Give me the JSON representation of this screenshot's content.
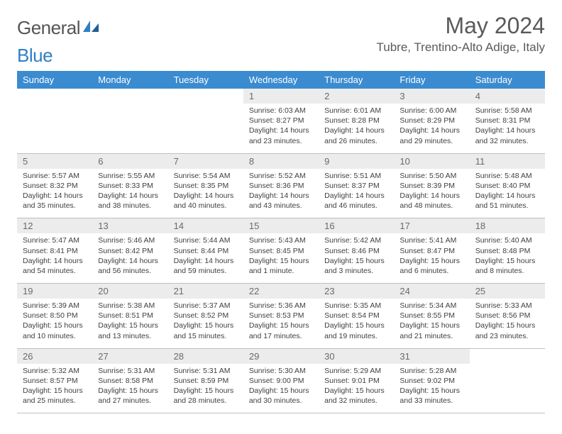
{
  "brand": {
    "word1": "General",
    "word2": "Blue"
  },
  "header": {
    "month_title": "May 2024",
    "location": "Tubre, Trentino-Alto Adige, Italy"
  },
  "colors": {
    "header_bg": "#3b8bd0",
    "header_text": "#ffffff",
    "daynum_bg": "#ececec",
    "text": "#3f3f3f",
    "border": "#bfbfbf"
  },
  "day_names": [
    "Sunday",
    "Monday",
    "Tuesday",
    "Wednesday",
    "Thursday",
    "Friday",
    "Saturday"
  ],
  "weeks": [
    [
      {
        "n": "",
        "lines": [
          "",
          "",
          "",
          ""
        ]
      },
      {
        "n": "",
        "lines": [
          "",
          "",
          "",
          ""
        ]
      },
      {
        "n": "",
        "lines": [
          "",
          "",
          "",
          ""
        ]
      },
      {
        "n": "1",
        "lines": [
          "Sunrise: 6:03 AM",
          "Sunset: 8:27 PM",
          "Daylight: 14 hours",
          "and 23 minutes."
        ]
      },
      {
        "n": "2",
        "lines": [
          "Sunrise: 6:01 AM",
          "Sunset: 8:28 PM",
          "Daylight: 14 hours",
          "and 26 minutes."
        ]
      },
      {
        "n": "3",
        "lines": [
          "Sunrise: 6:00 AM",
          "Sunset: 8:29 PM",
          "Daylight: 14 hours",
          "and 29 minutes."
        ]
      },
      {
        "n": "4",
        "lines": [
          "Sunrise: 5:58 AM",
          "Sunset: 8:31 PM",
          "Daylight: 14 hours",
          "and 32 minutes."
        ]
      }
    ],
    [
      {
        "n": "5",
        "lines": [
          "Sunrise: 5:57 AM",
          "Sunset: 8:32 PM",
          "Daylight: 14 hours",
          "and 35 minutes."
        ]
      },
      {
        "n": "6",
        "lines": [
          "Sunrise: 5:55 AM",
          "Sunset: 8:33 PM",
          "Daylight: 14 hours",
          "and 38 minutes."
        ]
      },
      {
        "n": "7",
        "lines": [
          "Sunrise: 5:54 AM",
          "Sunset: 8:35 PM",
          "Daylight: 14 hours",
          "and 40 minutes."
        ]
      },
      {
        "n": "8",
        "lines": [
          "Sunrise: 5:52 AM",
          "Sunset: 8:36 PM",
          "Daylight: 14 hours",
          "and 43 minutes."
        ]
      },
      {
        "n": "9",
        "lines": [
          "Sunrise: 5:51 AM",
          "Sunset: 8:37 PM",
          "Daylight: 14 hours",
          "and 46 minutes."
        ]
      },
      {
        "n": "10",
        "lines": [
          "Sunrise: 5:50 AM",
          "Sunset: 8:39 PM",
          "Daylight: 14 hours",
          "and 48 minutes."
        ]
      },
      {
        "n": "11",
        "lines": [
          "Sunrise: 5:48 AM",
          "Sunset: 8:40 PM",
          "Daylight: 14 hours",
          "and 51 minutes."
        ]
      }
    ],
    [
      {
        "n": "12",
        "lines": [
          "Sunrise: 5:47 AM",
          "Sunset: 8:41 PM",
          "Daylight: 14 hours",
          "and 54 minutes."
        ]
      },
      {
        "n": "13",
        "lines": [
          "Sunrise: 5:46 AM",
          "Sunset: 8:42 PM",
          "Daylight: 14 hours",
          "and 56 minutes."
        ]
      },
      {
        "n": "14",
        "lines": [
          "Sunrise: 5:44 AM",
          "Sunset: 8:44 PM",
          "Daylight: 14 hours",
          "and 59 minutes."
        ]
      },
      {
        "n": "15",
        "lines": [
          "Sunrise: 5:43 AM",
          "Sunset: 8:45 PM",
          "Daylight: 15 hours",
          "and 1 minute."
        ]
      },
      {
        "n": "16",
        "lines": [
          "Sunrise: 5:42 AM",
          "Sunset: 8:46 PM",
          "Daylight: 15 hours",
          "and 3 minutes."
        ]
      },
      {
        "n": "17",
        "lines": [
          "Sunrise: 5:41 AM",
          "Sunset: 8:47 PM",
          "Daylight: 15 hours",
          "and 6 minutes."
        ]
      },
      {
        "n": "18",
        "lines": [
          "Sunrise: 5:40 AM",
          "Sunset: 8:48 PM",
          "Daylight: 15 hours",
          "and 8 minutes."
        ]
      }
    ],
    [
      {
        "n": "19",
        "lines": [
          "Sunrise: 5:39 AM",
          "Sunset: 8:50 PM",
          "Daylight: 15 hours",
          "and 10 minutes."
        ]
      },
      {
        "n": "20",
        "lines": [
          "Sunrise: 5:38 AM",
          "Sunset: 8:51 PM",
          "Daylight: 15 hours",
          "and 13 minutes."
        ]
      },
      {
        "n": "21",
        "lines": [
          "Sunrise: 5:37 AM",
          "Sunset: 8:52 PM",
          "Daylight: 15 hours",
          "and 15 minutes."
        ]
      },
      {
        "n": "22",
        "lines": [
          "Sunrise: 5:36 AM",
          "Sunset: 8:53 PM",
          "Daylight: 15 hours",
          "and 17 minutes."
        ]
      },
      {
        "n": "23",
        "lines": [
          "Sunrise: 5:35 AM",
          "Sunset: 8:54 PM",
          "Daylight: 15 hours",
          "and 19 minutes."
        ]
      },
      {
        "n": "24",
        "lines": [
          "Sunrise: 5:34 AM",
          "Sunset: 8:55 PM",
          "Daylight: 15 hours",
          "and 21 minutes."
        ]
      },
      {
        "n": "25",
        "lines": [
          "Sunrise: 5:33 AM",
          "Sunset: 8:56 PM",
          "Daylight: 15 hours",
          "and 23 minutes."
        ]
      }
    ],
    [
      {
        "n": "26",
        "lines": [
          "Sunrise: 5:32 AM",
          "Sunset: 8:57 PM",
          "Daylight: 15 hours",
          "and 25 minutes."
        ]
      },
      {
        "n": "27",
        "lines": [
          "Sunrise: 5:31 AM",
          "Sunset: 8:58 PM",
          "Daylight: 15 hours",
          "and 27 minutes."
        ]
      },
      {
        "n": "28",
        "lines": [
          "Sunrise: 5:31 AM",
          "Sunset: 8:59 PM",
          "Daylight: 15 hours",
          "and 28 minutes."
        ]
      },
      {
        "n": "29",
        "lines": [
          "Sunrise: 5:30 AM",
          "Sunset: 9:00 PM",
          "Daylight: 15 hours",
          "and 30 minutes."
        ]
      },
      {
        "n": "30",
        "lines": [
          "Sunrise: 5:29 AM",
          "Sunset: 9:01 PM",
          "Daylight: 15 hours",
          "and 32 minutes."
        ]
      },
      {
        "n": "31",
        "lines": [
          "Sunrise: 5:28 AM",
          "Sunset: 9:02 PM",
          "Daylight: 15 hours",
          "and 33 minutes."
        ]
      },
      {
        "n": "",
        "lines": [
          "",
          "",
          "",
          ""
        ]
      }
    ]
  ]
}
